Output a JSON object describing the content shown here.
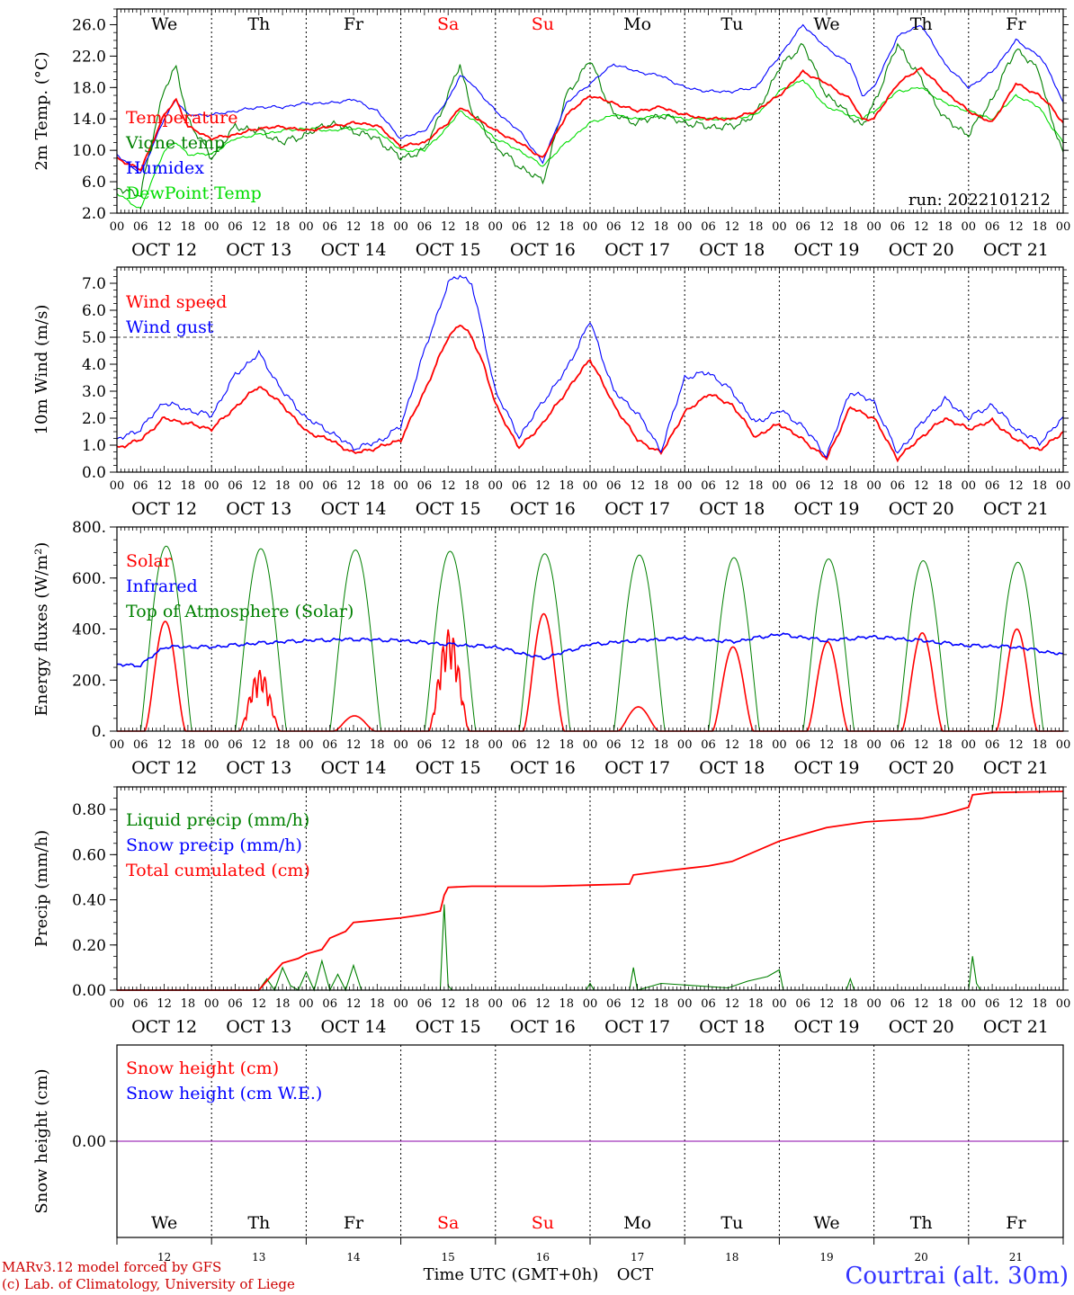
{
  "run_label": "run: 2022101212",
  "location": "Courtrai (alt. 30m)",
  "credits": [
    "MARv3.12 model forced by GFS",
    "(c) Lab. of Climatology, University of Liege"
  ],
  "x_axis_title": "Time UTC (GMT+0h)",
  "month_label": "OCT",
  "colors": {
    "red": "#ff0000",
    "green": "#008000",
    "blue": "#0000ff",
    "lightgreen": "#00dd00",
    "purple": "#8800aa",
    "weekend": "#ff0000"
  },
  "days": [
    {
      "abbr": "We",
      "date": "OCT 12",
      "num": "12",
      "weekend": false
    },
    {
      "abbr": "Th",
      "date": "OCT 13",
      "num": "13",
      "weekend": false
    },
    {
      "abbr": "Fr",
      "date": "OCT 14",
      "num": "14",
      "weekend": false
    },
    {
      "abbr": "Sa",
      "date": "OCT 15",
      "num": "15",
      "weekend": true
    },
    {
      "abbr": "Su",
      "date": "OCT 16",
      "num": "16",
      "weekend": true
    },
    {
      "abbr": "Mo",
      "date": "OCT 17",
      "num": "17",
      "weekend": false
    },
    {
      "abbr": "Tu",
      "date": "OCT 18",
      "num": "18",
      "weekend": false
    },
    {
      "abbr": "We",
      "date": "OCT 19",
      "num": "19",
      "weekend": false
    },
    {
      "abbr": "Th",
      "date": "OCT 20",
      "num": "20",
      "weekend": false
    },
    {
      "abbr": "Fr",
      "date": "OCT 21",
      "num": "21",
      "weekend": false
    }
  ],
  "hour_ticks": [
    "00",
    "06",
    "12",
    "18"
  ],
  "chart_data": [
    {
      "id": "temperature",
      "type": "line",
      "ylabel": "2m Temp. (°C)",
      "ylim": [
        2,
        28
      ],
      "yticks": [
        2,
        6,
        10,
        14,
        18,
        22,
        26
      ],
      "ytick_labels": [
        "2.0",
        "6.0",
        "10.0",
        "14.0",
        "18.0",
        "22.0",
        "26.0"
      ],
      "x": [
        0,
        6,
        12,
        15,
        18,
        24,
        30,
        36,
        42,
        48,
        54,
        60,
        66,
        72,
        78,
        84,
        87,
        90,
        96,
        102,
        108,
        114,
        120,
        126,
        132,
        138,
        144,
        150,
        156,
        162,
        168,
        174,
        180,
        186,
        189,
        192,
        198,
        204,
        210,
        216,
        222,
        228,
        234,
        237,
        240
      ],
      "series": [
        {
          "name": "Temperature",
          "color": "red",
          "values": [
            9.0,
            7.5,
            14.5,
            16.5,
            13.0,
            11.5,
            12.0,
            12.8,
            13.0,
            12.5,
            13.0,
            13.5,
            13.2,
            10.5,
            11.0,
            13.5,
            15.5,
            14.5,
            12.5,
            11.0,
            9.0,
            14.5,
            17.0,
            16.0,
            15.0,
            15.5,
            14.5,
            14.0,
            14.0,
            15.0,
            17.0,
            20.0,
            18.5,
            16.5,
            14.0,
            14.0,
            18.5,
            20.5,
            17.5,
            15.0,
            13.5,
            18.5,
            17.0,
            15.5,
            13.5
          ]
        },
        {
          "name": "Vigne temp",
          "color": "green",
          "values": [
            5.0,
            4.5,
            18.0,
            20.5,
            14.0,
            9.0,
            13.0,
            12.5,
            11.0,
            12.0,
            13.5,
            12.5,
            11.5,
            9.0,
            10.0,
            17.0,
            21.0,
            15.0,
            10.5,
            8.0,
            6.0,
            17.0,
            21.5,
            14.5,
            13.5,
            14.5,
            13.5,
            13.0,
            13.0,
            14.5,
            20.5,
            23.5,
            17.0,
            14.5,
            13.0,
            16.0,
            23.5,
            19.0,
            14.0,
            12.0,
            16.5,
            23.0,
            20.0,
            14.0,
            9.5
          ]
        },
        {
          "name": "Humidex",
          "color": "blue",
          "values": [
            9.5,
            7.0,
            14.0,
            16.5,
            14.5,
            14.5,
            15.0,
            15.5,
            15.5,
            16.0,
            16.0,
            16.5,
            15.0,
            11.5,
            12.5,
            16.5,
            19.5,
            18.5,
            15.0,
            12.5,
            8.5,
            16.0,
            18.5,
            21.0,
            20.0,
            19.5,
            18.0,
            17.5,
            17.5,
            18.0,
            22.0,
            26.0,
            23.0,
            21.0,
            17.0,
            18.0,
            24.5,
            26.0,
            21.0,
            18.0,
            20.0,
            24.0,
            22.0,
            19.5,
            16.0
          ]
        },
        {
          "name": "DewPoint Temp",
          "color": "lightgreen",
          "values": [
            4.5,
            2.5,
            10.0,
            11.0,
            9.5,
            9.5,
            11.5,
            12.0,
            12.5,
            12.8,
            12.5,
            12.8,
            12.5,
            10.0,
            10.0,
            13.0,
            15.0,
            14.0,
            11.5,
            10.0,
            8.0,
            11.0,
            13.5,
            14.5,
            14.0,
            14.5,
            14.0,
            14.0,
            14.0,
            14.5,
            17.5,
            19.0,
            15.5,
            14.5,
            14.0,
            15.0,
            17.5,
            18.0,
            16.0,
            15.0,
            14.0,
            17.0,
            15.5,
            13.0,
            11.0
          ]
        }
      ]
    },
    {
      "id": "wind",
      "type": "line",
      "ylabel": "10m Wind (m/s)",
      "ylim": [
        0,
        7.6
      ],
      "yticks": [
        0,
        1,
        2,
        3,
        4,
        5,
        6,
        7
      ],
      "ytick_labels": [
        "0.0",
        "1.0",
        "2.0",
        "3.0",
        "4.0",
        "5.0",
        "6.0",
        "7.0"
      ],
      "reference_line": 5.0,
      "x": [
        0,
        6,
        12,
        18,
        24,
        30,
        36,
        42,
        48,
        54,
        60,
        66,
        72,
        78,
        84,
        87,
        90,
        93,
        96,
        102,
        108,
        114,
        120,
        126,
        132,
        138,
        144,
        150,
        156,
        162,
        168,
        174,
        180,
        186,
        192,
        198,
        204,
        210,
        216,
        222,
        228,
        234,
        240
      ],
      "series": [
        {
          "name": "Wind speed",
          "color": "red",
          "values": [
            0.9,
            1.2,
            2.0,
            1.8,
            1.6,
            2.4,
            3.2,
            2.5,
            1.5,
            1.2,
            0.7,
            0.9,
            1.2,
            3.0,
            5.0,
            5.5,
            5.0,
            4.0,
            2.5,
            0.9,
            1.8,
            3.0,
            4.2,
            2.5,
            1.2,
            0.7,
            2.2,
            2.9,
            2.5,
            1.3,
            1.8,
            1.2,
            0.5,
            2.4,
            2.0,
            0.5,
            1.3,
            2.0,
            1.6,
            1.9,
            1.2,
            0.8,
            1.5
          ]
        },
        {
          "name": "Wind gust",
          "color": "blue",
          "values": [
            1.2,
            1.6,
            2.6,
            2.3,
            2.1,
            3.6,
            4.4,
            3.0,
            2.0,
            1.5,
            0.9,
            1.1,
            1.7,
            4.5,
            7.0,
            7.3,
            7.0,
            5.0,
            3.0,
            1.3,
            2.6,
            3.8,
            5.6,
            3.0,
            2.2,
            0.8,
            3.5,
            3.7,
            3.0,
            1.8,
            2.3,
            1.7,
            0.6,
            3.0,
            2.6,
            0.7,
            1.8,
            2.7,
            2.0,
            2.5,
            1.6,
            1.1,
            2.0
          ]
        }
      ]
    },
    {
      "id": "energy",
      "type": "line",
      "ylabel": "Energy fluxes (W/m²)",
      "ylim": [
        0,
        800
      ],
      "yticks": [
        0,
        200,
        400,
        600,
        800
      ],
      "ytick_labels": [
        "0.",
        "200.",
        "400.",
        "600.",
        "800."
      ],
      "series": [
        {
          "name": "Solar",
          "color": "red",
          "daily_peak": [
            430,
            240,
            60,
            400,
            460,
            95,
            330,
            350,
            385,
            400
          ]
        },
        {
          "name": "Infrared",
          "color": "blue",
          "x": [
            0,
            6,
            12,
            24,
            36,
            48,
            60,
            72,
            84,
            96,
            108,
            120,
            132,
            144,
            156,
            168,
            180,
            192,
            204,
            216,
            228,
            240
          ],
          "values": [
            260,
            258,
            330,
            330,
            345,
            355,
            360,
            355,
            340,
            330,
            285,
            340,
            355,
            365,
            350,
            380,
            355,
            370,
            355,
            335,
            330,
            300
          ]
        },
        {
          "name": "Top of Atmosphere (Solar)",
          "color": "green",
          "daily_peak": [
            725,
            715,
            710,
            705,
            695,
            690,
            680,
            675,
            668,
            662
          ]
        }
      ]
    },
    {
      "id": "precip",
      "type": "line",
      "ylabel": "Precip (mm/h)",
      "ylim": [
        0,
        0.9
      ],
      "yticks": [
        0,
        0.2,
        0.4,
        0.6,
        0.8
      ],
      "ytick_labels": [
        "0.00",
        "0.20",
        "0.40",
        "0.60",
        "0.80"
      ],
      "series": [
        {
          "name": "Liquid precip (mm/h)",
          "color": "green",
          "x": [
            0,
            36,
            38,
            40,
            42,
            44,
            46,
            48,
            50,
            52,
            54,
            56,
            58,
            60,
            62,
            70,
            82,
            83,
            84,
            85,
            86,
            100,
            119,
            120,
            121,
            130,
            131,
            132,
            138,
            155,
            160,
            165,
            168,
            169,
            180,
            185,
            186,
            187,
            200,
            212,
            216,
            217,
            218,
            219,
            220,
            240
          ],
          "values": [
            0,
            0,
            0.05,
            0.0,
            0.1,
            0.02,
            0.0,
            0.08,
            0.0,
            0.13,
            0.0,
            0.07,
            0.0,
            0.11,
            0.0,
            0.0,
            0.0,
            0.38,
            0.02,
            0.0,
            0.0,
            0.0,
            0.0,
            0.03,
            0.0,
            0.0,
            0.1,
            0.0,
            0.03,
            0.01,
            0.04,
            0.06,
            0.09,
            0.0,
            0.0,
            0.0,
            0.05,
            0.0,
            0.0,
            0.0,
            0.0,
            0.15,
            0.03,
            0.0,
            0.0,
            0.0
          ]
        },
        {
          "name": "Snow precip (mm/h)",
          "color": "blue",
          "x": [
            0,
            240
          ],
          "values": [
            0,
            0
          ]
        },
        {
          "name": "Total cumulated (cm)",
          "color": "red",
          "x": [
            0,
            36,
            40,
            42,
            46,
            48,
            52,
            54,
            58,
            60,
            66,
            72,
            78,
            82,
            83,
            84,
            90,
            96,
            108,
            120,
            130,
            131,
            140,
            150,
            156,
            168,
            180,
            190,
            204,
            210,
            216,
            217,
            222,
            240
          ],
          "values": [
            0,
            0,
            0.08,
            0.12,
            0.14,
            0.16,
            0.18,
            0.23,
            0.26,
            0.3,
            0.31,
            0.32,
            0.335,
            0.35,
            0.42,
            0.455,
            0.46,
            0.46,
            0.46,
            0.465,
            0.47,
            0.51,
            0.53,
            0.55,
            0.57,
            0.66,
            0.72,
            0.745,
            0.76,
            0.78,
            0.81,
            0.865,
            0.875,
            0.88
          ]
        }
      ]
    },
    {
      "id": "snow",
      "type": "line",
      "ylabel": "Snow height (cm)",
      "ylim": [
        -1,
        1
      ],
      "yticks": [
        0
      ],
      "ytick_labels": [
        "0.00"
      ],
      "series": [
        {
          "name": "Snow height (cm)",
          "color": "red",
          "x": [
            0,
            240
          ],
          "values": [
            0,
            0
          ]
        },
        {
          "name": "Snow height (cm W.E.)",
          "color": "blue",
          "x": [
            0,
            240
          ],
          "values": [
            0,
            0
          ]
        }
      ]
    }
  ]
}
